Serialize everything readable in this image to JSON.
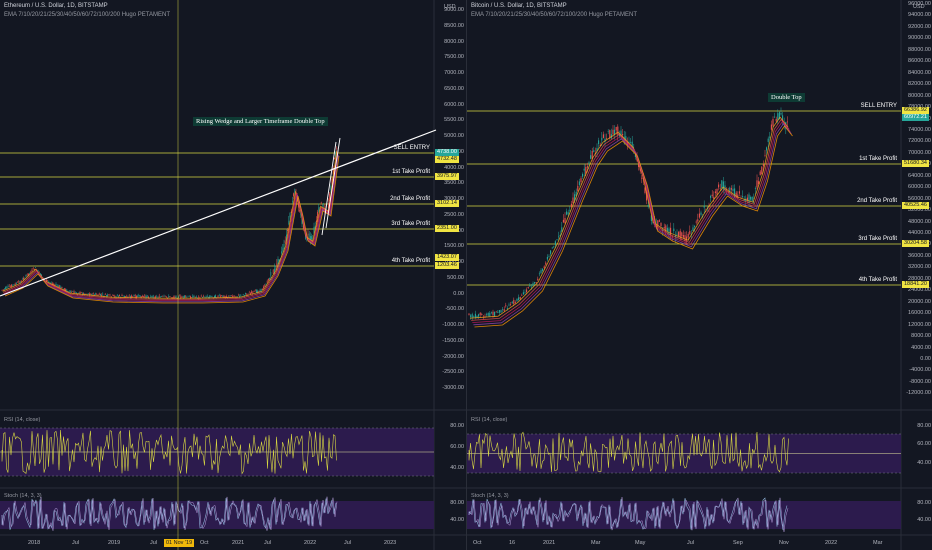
{
  "colors": {
    "background": "#131722",
    "gold": "#d8d843",
    "tag_yellow": "#f0e442",
    "tag_teal": "#26a69a",
    "rsi_fill": "#2c1b4d",
    "candle_up": "#26a69a",
    "candle_down": "#ef5350",
    "trend_white": "#ffffff"
  },
  "left": {
    "title": "Ethereum / U.S. Dollar, 1D, BITSTAMP",
    "subtitle": "EMA 7/10/20/21/25/30/40/50/60/72/100/200 Hugo PETAMENT",
    "annotation": "Rising Wedge and Larger Timeframe Double Top",
    "axis_currency": "USD",
    "price_ticks": [
      "9000.00",
      "8500.00",
      "8000.00",
      "7500.00",
      "7000.00",
      "6500.00",
      "6000.00",
      "5500.00",
      "5000.00",
      "4500.00",
      "4000.00",
      "3500.00",
      "3000.00",
      "2500.00",
      "2000.00",
      "1500.00",
      "1000.00",
      "500.00",
      "0.00",
      "-500.00",
      "-1000.00",
      "-1500.00",
      "-2000.00",
      "-2500.00",
      "-3000.00"
    ],
    "levels": [
      {
        "label": "SELL ENTRY",
        "price": "4738.00",
        "tag": "teal"
      },
      {
        "label": "",
        "price": "4732.48",
        "tag": "yellow"
      },
      {
        "label": "1st Take Profit",
        "price": "3975.97",
        "tag": "yellow"
      },
      {
        "label": "2nd Take Profit",
        "price": "3102.14",
        "tag": "yellow"
      },
      {
        "label": "3rd Take Profit",
        "price": "2351.00",
        "tag": "yellow"
      },
      {
        "label": "",
        "price": "1423.07",
        "tag": "yellow"
      },
      {
        "label": "4th Take Profit",
        "price": "1203.46",
        "tag": "yellow"
      }
    ],
    "rsi_label": "RSI (14, close)",
    "rsi_ticks": [
      "80.00",
      "60.00",
      "40.00"
    ],
    "stoch_label": "Stoch (14, 3, 3)",
    "stoch_ticks": [
      "80.00",
      "40.00"
    ],
    "dates": [
      "2018",
      "Jul",
      "2019",
      "Jul",
      "Oct",
      "2021",
      "Jul",
      "2022",
      "Jul",
      "2023"
    ],
    "cursor_date": "01 Nov '19"
  },
  "right": {
    "title": "Bitcoin / U.S. Dollar, 1D, BITSTAMP",
    "subtitle": "EMA 7/10/20/21/25/30/40/50/60/72/100/200 Hugo PETAMENT",
    "annotation": "Double Top",
    "axis_currency": "USD",
    "price_ticks": [
      "96000.00",
      "94000.00",
      "92000.00",
      "90000.00",
      "88000.00",
      "86000.00",
      "84000.00",
      "82000.00",
      "80000.00",
      "78000.00",
      "76000.00",
      "74000.00",
      "72000.00",
      "70000.00",
      "68000.00",
      "64000.00",
      "60000.00",
      "56000.00",
      "52000.00",
      "48000.00",
      "44000.00",
      "40000.00",
      "36000.00",
      "32000.00",
      "28000.00",
      "24000.00",
      "20000.00",
      "16000.00",
      "12000.00",
      "8000.00",
      "4000.00",
      "0.00",
      "-4000.00",
      "-8000.00",
      "-12000.00"
    ],
    "levels": [
      {
        "label": "SELL ENTRY",
        "price": "66386.92",
        "tag": "yellow"
      },
      {
        "label": "",
        "price": "60972.21",
        "tag": "teal"
      },
      {
        "label": "1st Take Profit",
        "price": "51680.34",
        "tag": "yellow"
      },
      {
        "label": "2nd Take Profit",
        "price": "40525.46",
        "tag": "yellow"
      },
      {
        "label": "3rd Take Profit",
        "price": "30204.58",
        "tag": "yellow"
      },
      {
        "label": "4th Take Profit",
        "price": "18841.20",
        "tag": "yellow"
      }
    ],
    "rsi_label": "RSI (14, close)",
    "rsi_ticks": [
      "80.00",
      "60.00",
      "40.00"
    ],
    "stoch_label": "Stoch (14, 3, 3)",
    "stoch_ticks": [
      "80.00",
      "40.00"
    ],
    "dates": [
      "Oct",
      "16",
      "2021",
      "Mar",
      "May",
      "Jul",
      "Sep",
      "Nov",
      "2022",
      "Mar"
    ]
  }
}
